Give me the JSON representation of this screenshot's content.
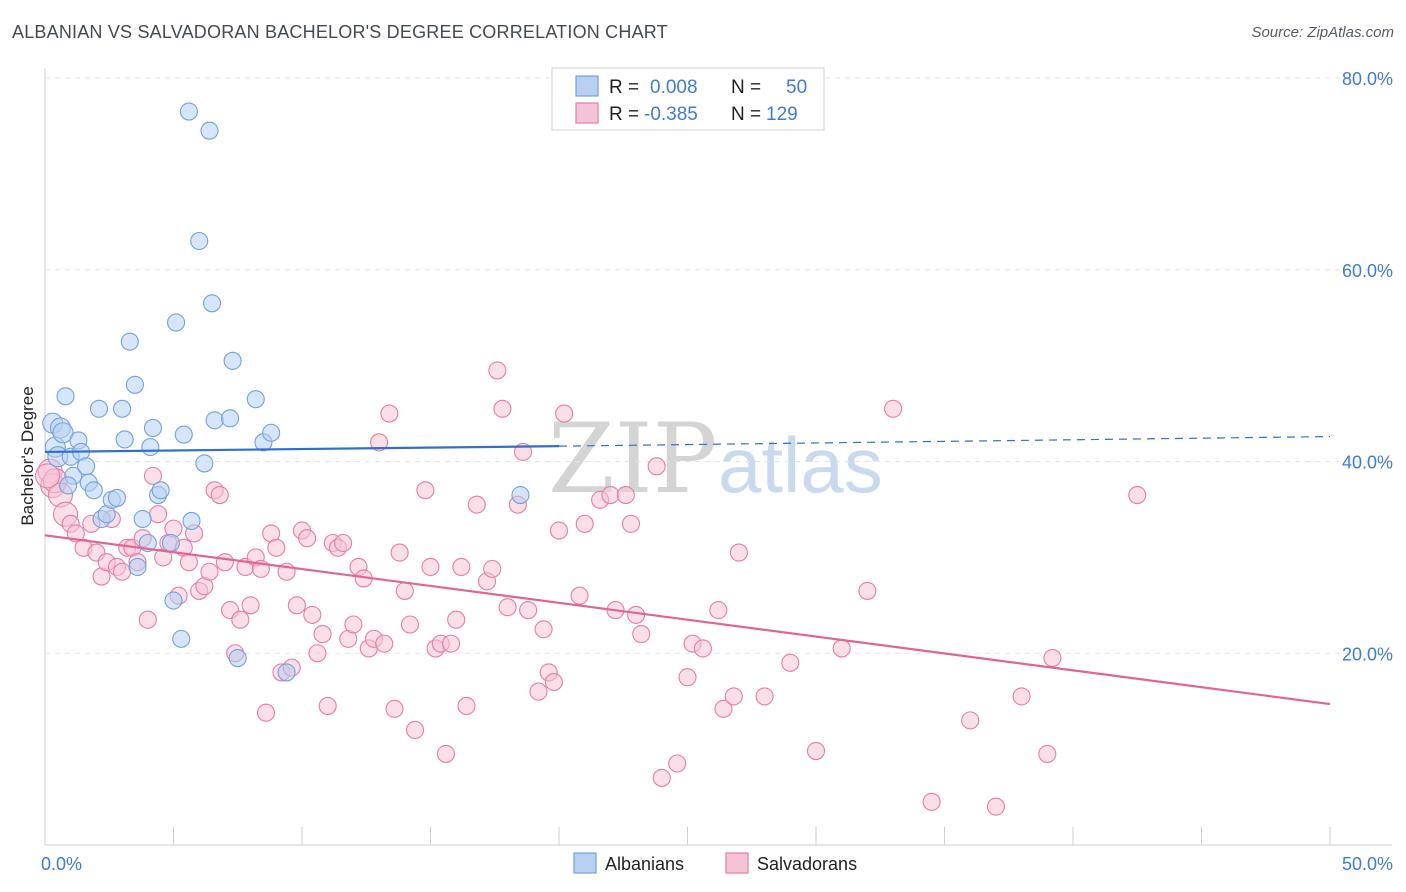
{
  "title": "ALBANIAN VS SALVADORAN BACHELOR'S DEGREE CORRELATION CHART",
  "source": "Source: ZipAtlas.com",
  "watermark": {
    "zip": "ZIP",
    "atlas": "atlas"
  },
  "colors": {
    "albanians": "#6fa3e0",
    "albanians_fill": "#b7d0f2",
    "albanians_line": "#2f6fcf",
    "salvadorans": "#e87ca3",
    "salvadorans_fill": "#f6c3d6",
    "salvadorans_line": "#e06592",
    "tick_label": "#3f7ad6",
    "grid": "#e3e3e3"
  },
  "legend": {
    "rows": [
      {
        "r_label": "R =",
        "r_value": "0.008",
        "n_label": "N =",
        "n_value": "50"
      },
      {
        "r_label": "R =",
        "r_value": "-0.385",
        "n_label": "N =",
        "n_value": "129"
      }
    ]
  },
  "bottom_legend": [
    "Albanians",
    "Salvadorans"
  ],
  "chart_data": {
    "type": "scatter",
    "title": "ALBANIAN VS SALVADORAN BACHELOR'S DEGREE CORRELATION CHART",
    "xlabel": "",
    "ylabel": "Bachelor's Degree",
    "xlim": [
      0,
      50
    ],
    "ylim": [
      0,
      80
    ],
    "x_tick_labels": [
      "0.0%",
      "50.0%"
    ],
    "y_ticks": [
      20,
      40,
      60,
      80
    ],
    "y_tick_labels": [
      "20.0%",
      "40.0%",
      "60.0%",
      "80.0%"
    ],
    "x_minor_ticks": [
      0,
      5,
      10,
      15,
      20,
      25,
      30,
      35,
      40,
      45,
      50
    ],
    "series": [
      {
        "name": "Albanians",
        "trend": {
          "x0": 0,
          "y0": 41.0,
          "x1": 20,
          "y1": 41.6,
          "dashed_to_x": 50,
          "dashed_to_y": 42.6
        },
        "points": [
          [
            0.3,
            44.0
          ],
          [
            0.4,
            41.5
          ],
          [
            0.5,
            40.5
          ],
          [
            0.6,
            43.5
          ],
          [
            0.7,
            43.0
          ],
          [
            0.8,
            46.8
          ],
          [
            1.0,
            40.5
          ],
          [
            1.1,
            38.5
          ],
          [
            1.3,
            42.2
          ],
          [
            1.4,
            41.0
          ],
          [
            1.6,
            39.5
          ],
          [
            1.7,
            37.8
          ],
          [
            1.9,
            37.0
          ],
          [
            2.1,
            45.5
          ],
          [
            2.2,
            34.0
          ],
          [
            2.4,
            34.5
          ],
          [
            2.6,
            36.0
          ],
          [
            2.8,
            36.2
          ],
          [
            3.0,
            45.5
          ],
          [
            3.1,
            42.3
          ],
          [
            3.3,
            52.5
          ],
          [
            3.5,
            48.0
          ],
          [
            3.6,
            29.0
          ],
          [
            3.8,
            34.0
          ],
          [
            4.0,
            31.5
          ],
          [
            4.1,
            41.5
          ],
          [
            4.2,
            43.5
          ],
          [
            4.4,
            36.5
          ],
          [
            4.5,
            37.0
          ],
          [
            4.9,
            31.5
          ],
          [
            5.0,
            25.5
          ],
          [
            5.1,
            54.5
          ],
          [
            5.3,
            21.5
          ],
          [
            5.4,
            42.8
          ],
          [
            5.6,
            76.5
          ],
          [
            5.7,
            33.8
          ],
          [
            6.0,
            63.0
          ],
          [
            6.2,
            39.8
          ],
          [
            6.4,
            74.5
          ],
          [
            6.5,
            56.5
          ],
          [
            6.6,
            44.3
          ],
          [
            7.2,
            44.5
          ],
          [
            7.3,
            50.5
          ],
          [
            7.5,
            19.5
          ],
          [
            8.2,
            46.5
          ],
          [
            8.5,
            42.0
          ],
          [
            8.8,
            43.0
          ],
          [
            9.4,
            18.0
          ],
          [
            18.5,
            36.5
          ],
          [
            0.9,
            37.5
          ]
        ]
      },
      {
        "name": "Salvadorans",
        "trend": {
          "x0": 0,
          "y0": 32.3,
          "x1": 50,
          "y1": 14.7
        },
        "points": [
          [
            0.2,
            39.0
          ],
          [
            0.3,
            37.5
          ],
          [
            0.4,
            38.0
          ],
          [
            0.6,
            36.5
          ],
          [
            0.8,
            34.5
          ],
          [
            1.0,
            33.5
          ],
          [
            1.2,
            32.5
          ],
          [
            1.5,
            31.0
          ],
          [
            1.8,
            33.5
          ],
          [
            2.0,
            30.5
          ],
          [
            2.2,
            28.0
          ],
          [
            2.4,
            29.5
          ],
          [
            2.6,
            34.0
          ],
          [
            2.8,
            29.0
          ],
          [
            3.0,
            28.5
          ],
          [
            3.2,
            31.0
          ],
          [
            3.4,
            31.0
          ],
          [
            3.6,
            29.5
          ],
          [
            3.8,
            32.0
          ],
          [
            4.0,
            23.5
          ],
          [
            4.2,
            38.5
          ],
          [
            4.4,
            34.5
          ],
          [
            4.6,
            30.0
          ],
          [
            4.8,
            31.5
          ],
          [
            5.0,
            33.0
          ],
          [
            5.2,
            26.0
          ],
          [
            5.4,
            31.0
          ],
          [
            5.6,
            29.5
          ],
          [
            5.8,
            32.5
          ],
          [
            6.0,
            26.5
          ],
          [
            6.2,
            27.0
          ],
          [
            6.4,
            28.5
          ],
          [
            6.6,
            37.0
          ],
          [
            6.8,
            36.5
          ],
          [
            7.0,
            29.5
          ],
          [
            7.2,
            24.5
          ],
          [
            7.4,
            20.0
          ],
          [
            7.6,
            23.5
          ],
          [
            7.8,
            29.0
          ],
          [
            8.0,
            25.0
          ],
          [
            8.2,
            30.0
          ],
          [
            8.4,
            28.8
          ],
          [
            8.6,
            13.8
          ],
          [
            8.8,
            32.5
          ],
          [
            9.0,
            31.0
          ],
          [
            9.2,
            18.0
          ],
          [
            9.4,
            28.5
          ],
          [
            9.6,
            18.5
          ],
          [
            9.8,
            25.0
          ],
          [
            10.0,
            32.8
          ],
          [
            10.2,
            32.0
          ],
          [
            10.4,
            24.0
          ],
          [
            10.6,
            20.0
          ],
          [
            10.8,
            22.0
          ],
          [
            11.0,
            14.5
          ],
          [
            11.2,
            31.5
          ],
          [
            11.4,
            31.0
          ],
          [
            11.6,
            31.5
          ],
          [
            11.8,
            21.5
          ],
          [
            12.0,
            23.0
          ],
          [
            12.2,
            29.0
          ],
          [
            12.4,
            27.8
          ],
          [
            12.6,
            20.5
          ],
          [
            12.8,
            21.5
          ],
          [
            13.0,
            42.0
          ],
          [
            13.2,
            21.0
          ],
          [
            13.4,
            45.0
          ],
          [
            13.6,
            14.2
          ],
          [
            13.8,
            30.5
          ],
          [
            14.0,
            26.5
          ],
          [
            14.2,
            23.0
          ],
          [
            14.4,
            12.0
          ],
          [
            14.8,
            37.0
          ],
          [
            15.0,
            29.0
          ],
          [
            15.2,
            20.5
          ],
          [
            15.4,
            21.0
          ],
          [
            15.6,
            9.5
          ],
          [
            15.8,
            21.0
          ],
          [
            16.0,
            23.5
          ],
          [
            16.2,
            29.0
          ],
          [
            16.4,
            14.5
          ],
          [
            16.8,
            35.5
          ],
          [
            17.2,
            27.5
          ],
          [
            17.4,
            28.8
          ],
          [
            17.6,
            49.5
          ],
          [
            17.8,
            45.5
          ],
          [
            18.0,
            24.8
          ],
          [
            18.4,
            35.5
          ],
          [
            18.6,
            41.0
          ],
          [
            18.8,
            24.5
          ],
          [
            19.2,
            16.0
          ],
          [
            19.4,
            22.5
          ],
          [
            19.6,
            18.0
          ],
          [
            19.8,
            17.0
          ],
          [
            20.0,
            32.8
          ],
          [
            20.2,
            45.0
          ],
          [
            20.8,
            26.0
          ],
          [
            21.0,
            33.5
          ],
          [
            21.6,
            36.0
          ],
          [
            22.0,
            36.5
          ],
          [
            22.2,
            24.5
          ],
          [
            22.6,
            36.5
          ],
          [
            22.8,
            33.5
          ],
          [
            23.0,
            24.0
          ],
          [
            23.2,
            22.0
          ],
          [
            23.8,
            39.5
          ],
          [
            24.0,
            7.0
          ],
          [
            24.6,
            8.5
          ],
          [
            25.0,
            17.5
          ],
          [
            25.2,
            21.0
          ],
          [
            25.6,
            20.5
          ],
          [
            26.2,
            24.5
          ],
          [
            26.4,
            14.2
          ],
          [
            26.8,
            15.5
          ],
          [
            27.0,
            30.5
          ],
          [
            28.0,
            15.5
          ],
          [
            29.0,
            19.0
          ],
          [
            30.0,
            9.8
          ],
          [
            31.0,
            20.5
          ],
          [
            32.0,
            26.5
          ],
          [
            33.0,
            45.5
          ],
          [
            34.5,
            4.5
          ],
          [
            36.0,
            13.0
          ],
          [
            37.0,
            4.0
          ],
          [
            38.0,
            15.5
          ],
          [
            39.0,
            9.5
          ],
          [
            39.2,
            19.5
          ],
          [
            42.5,
            36.5
          ],
          [
            0.1,
            38.5
          ]
        ]
      }
    ]
  }
}
